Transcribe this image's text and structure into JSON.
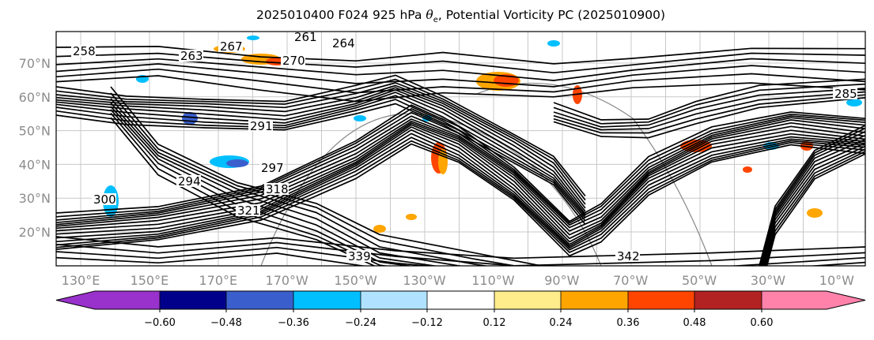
{
  "title": {
    "prefix": "2025010400 F024 925 hPa ",
    "theta": "θ",
    "sub": "e",
    "suffix": ", Potential Vorticity PC (2025010900)"
  },
  "map": {
    "lat_labels": [
      "70°N",
      "60°N",
      "50°N",
      "40°N",
      "30°N",
      "20°N"
    ],
    "lat_values": [
      70,
      60,
      50,
      40,
      30,
      20
    ],
    "lon_labels": [
      "130°E",
      "150°E",
      "170°E",
      "170°W",
      "150°W",
      "130°W",
      "110°W",
      "90°W",
      "70°W",
      "50°W",
      "30°W",
      "10°W"
    ],
    "contour_labels": [
      "261",
      "264",
      "267",
      "270",
      "258",
      "263",
      "291",
      "294",
      "297",
      "300",
      "318",
      "321",
      "339",
      "342",
      "285"
    ]
  },
  "colorbar": {
    "ticks": [
      "−0.60",
      "−0.48",
      "−0.36",
      "−0.24",
      "−0.12",
      "0.12",
      "0.24",
      "0.36",
      "0.48",
      "0.60"
    ],
    "colors": [
      "#9932cc",
      "#00008b",
      "#3a5fcd",
      "#00bfff",
      "#b0e2ff",
      "#ffffff",
      "#ffec8b",
      "#ffa500",
      "#ff4500",
      "#b22222",
      "#ff82ab"
    ]
  }
}
